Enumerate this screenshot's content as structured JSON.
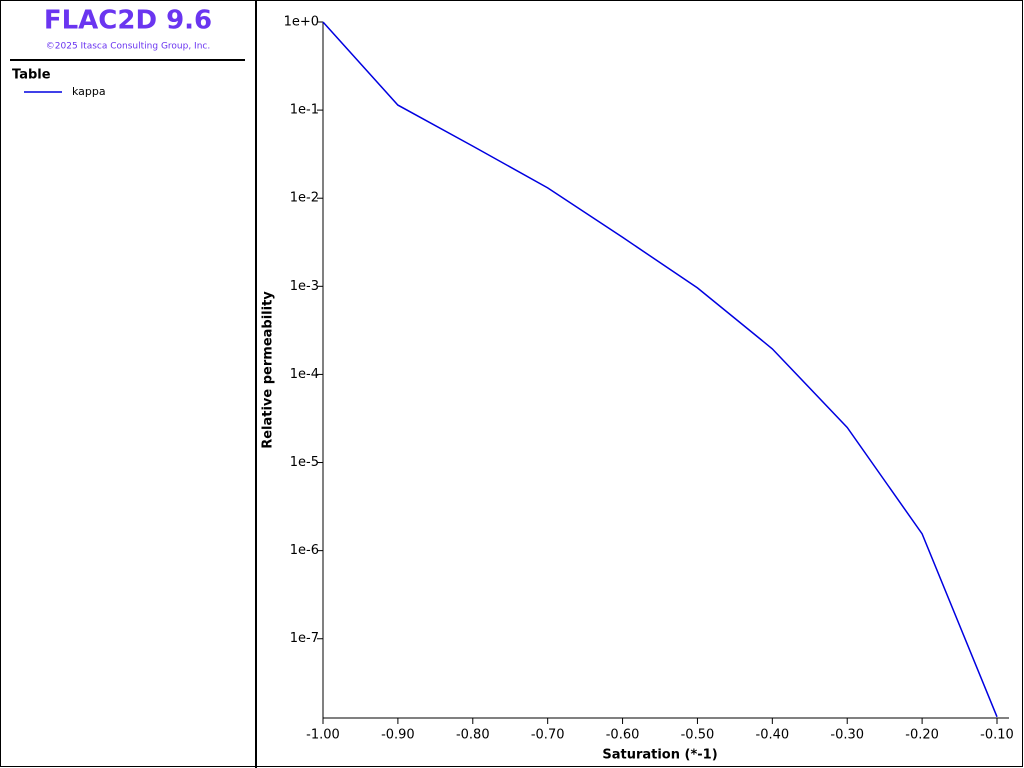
{
  "header": {
    "title": "FLAC2D 9.6",
    "copyright": "©2025 Itasca Consulting Group, Inc."
  },
  "chart_data": {
    "type": "line",
    "legend_title": "Table",
    "x_label": "Saturation (*-1)",
    "y_label": "Relative permeability",
    "x": [
      -1.0,
      -0.9,
      -0.8,
      -0.7,
      -0.6,
      -0.5,
      -0.4,
      -0.3,
      -0.2,
      -0.1
    ],
    "series": [
      {
        "name": "kappa",
        "color": "#0000e0",
        "values": [
          1.0,
          0.114,
          0.039,
          0.0131,
          0.0036,
          0.00096,
          0.000195,
          2.5e-05,
          1.55e-06,
          1.3e-08
        ]
      }
    ],
    "xlim": [
      -1.0,
      -0.1
    ],
    "ylim": [
      1.26e-08,
      1
    ],
    "log_y": true,
    "xticks": [
      {
        "value": -1.0,
        "label": "-1.00"
      },
      {
        "value": -0.9,
        "label": "-0.90"
      },
      {
        "value": -0.8,
        "label": "-0.80"
      },
      {
        "value": -0.7,
        "label": "-0.70"
      },
      {
        "value": -0.6,
        "label": "-0.60"
      },
      {
        "value": -0.5,
        "label": "-0.50"
      },
      {
        "value": -0.4,
        "label": "-0.40"
      },
      {
        "value": -0.3,
        "label": "-0.30"
      },
      {
        "value": -0.2,
        "label": "-0.20"
      },
      {
        "value": -0.1,
        "label": "-0.10"
      }
    ],
    "yticks": [
      {
        "value": 1,
        "label": "1e+0"
      },
      {
        "value": 0.1,
        "label": "1e-1"
      },
      {
        "value": 0.01,
        "label": "1e-2"
      },
      {
        "value": 0.001,
        "label": "1e-3"
      },
      {
        "value": 0.0001,
        "label": "1e-4"
      },
      {
        "value": 1e-05,
        "label": "1e-5"
      },
      {
        "value": 1e-06,
        "label": "1e-6"
      },
      {
        "value": 1e-07,
        "label": "1e-7"
      }
    ]
  }
}
